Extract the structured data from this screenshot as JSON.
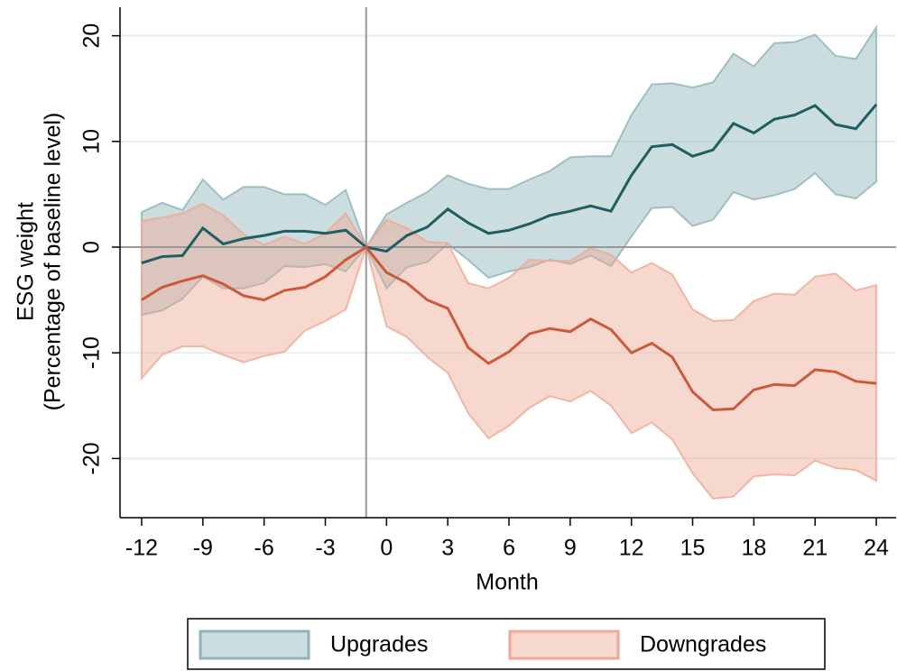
{
  "chart_data": {
    "type": "line",
    "xlabel": "Month",
    "ylabel": [
      "ESG weight",
      "(Percentage of baseline level)"
    ],
    "x": [
      -12,
      -11,
      -10,
      -9,
      -8,
      -7,
      -6,
      -5,
      -4,
      -3,
      -2,
      -1,
      0,
      1,
      2,
      3,
      4,
      5,
      6,
      7,
      8,
      9,
      10,
      11,
      12,
      13,
      14,
      15,
      16,
      17,
      18,
      19,
      20,
      21,
      22,
      23,
      24
    ],
    "xlim": [
      -13.06,
      24.97
    ],
    "xticks": [
      -12,
      -9,
      -6,
      -3,
      0,
      3,
      6,
      9,
      12,
      15,
      18,
      21,
      24
    ],
    "ylim": [
      -25.6,
      22.7
    ],
    "yticks": [
      -20,
      -10,
      0,
      10,
      20
    ],
    "grid": true,
    "vline": -1,
    "hline": 0,
    "legend": "bottom",
    "series": [
      {
        "name": "Upgrades",
        "color": "#1f5f63",
        "band_color": "#8fb3b9",
        "values": [
          -1.5,
          -0.9,
          -0.8,
          1.8,
          0.3,
          0.8,
          1.1,
          1.5,
          1.5,
          1.3,
          1.6,
          0,
          -0.4,
          1.1,
          1.9,
          3.6,
          2.3,
          1.3,
          1.6,
          2.2,
          3.0,
          3.4,
          3.9,
          3.4,
          6.8,
          9.5,
          9.7,
          8.6,
          9.2,
          11.7,
          10.8,
          12.1,
          12.5,
          13.4,
          11.6,
          11.2,
          13.5
        ],
        "upper": [
          3.3,
          4.2,
          3.5,
          6.4,
          4.5,
          5.7,
          5.7,
          5.0,
          5.0,
          4.0,
          5.4,
          0,
          3.1,
          4.2,
          5.2,
          6.8,
          6.0,
          5.5,
          5.5,
          6.4,
          7.2,
          8.5,
          8.6,
          8.6,
          12.5,
          15.4,
          15.5,
          15.1,
          15.6,
          18.3,
          17.1,
          19.3,
          19.4,
          20.1,
          18.1,
          17.8,
          20.8
        ],
        "lower": [
          -6.4,
          -6.0,
          -4.9,
          -2.8,
          -3.9,
          -3.9,
          -3.4,
          -1.8,
          -1.9,
          -1.6,
          -2.3,
          0,
          -3.9,
          -1.9,
          -1.4,
          0.3,
          -1.2,
          -2.9,
          -2.3,
          -1.9,
          -1.2,
          -1.6,
          -0.8,
          -1.8,
          1.0,
          3.7,
          3.8,
          2.0,
          2.6,
          5.2,
          4.5,
          4.9,
          5.5,
          7.0,
          5.0,
          4.6,
          6.2
        ]
      },
      {
        "name": "Downgrades",
        "color": "#cc5a3a",
        "band_color": "#eda995",
        "values": [
          -5.0,
          -3.8,
          -3.2,
          -2.7,
          -3.5,
          -4.6,
          -5.0,
          -4.1,
          -3.8,
          -2.8,
          -1.2,
          0,
          -2.4,
          -3.4,
          -5.0,
          -5.8,
          -9.5,
          -11.0,
          -9.9,
          -8.2,
          -7.7,
          -8.0,
          -6.8,
          -7.8,
          -10.0,
          -9.1,
          -10.4,
          -13.7,
          -15.4,
          -15.3,
          -13.5,
          -13.0,
          -13.1,
          -11.6,
          -11.8,
          -12.7,
          -12.9
        ],
        "upper": [
          2.5,
          2.8,
          3.2,
          4.1,
          3.0,
          1.2,
          0.2,
          1.0,
          0.3,
          1.3,
          3.2,
          0,
          2.6,
          1.8,
          0.5,
          0.4,
          -3.4,
          -3.9,
          -2.9,
          -1.2,
          -1.3,
          -1.3,
          -0.1,
          -0.7,
          -2.4,
          -1.5,
          -2.6,
          -5.9,
          -7.0,
          -6.9,
          -5.1,
          -4.4,
          -4.5,
          -2.8,
          -2.5,
          -4.1,
          -3.6
        ],
        "lower": [
          -12.4,
          -10.2,
          -9.4,
          -9.4,
          -10.2,
          -10.9,
          -10.3,
          -9.9,
          -7.9,
          -7.0,
          -5.9,
          0,
          -7.5,
          -8.5,
          -10.4,
          -11.9,
          -15.7,
          -18.1,
          -16.9,
          -15.2,
          -14.1,
          -14.6,
          -13.6,
          -15.0,
          -17.6,
          -16.6,
          -18.2,
          -21.4,
          -23.8,
          -23.6,
          -21.7,
          -21.5,
          -21.6,
          -20.2,
          -20.9,
          -21.1,
          -22.1
        ]
      }
    ]
  }
}
